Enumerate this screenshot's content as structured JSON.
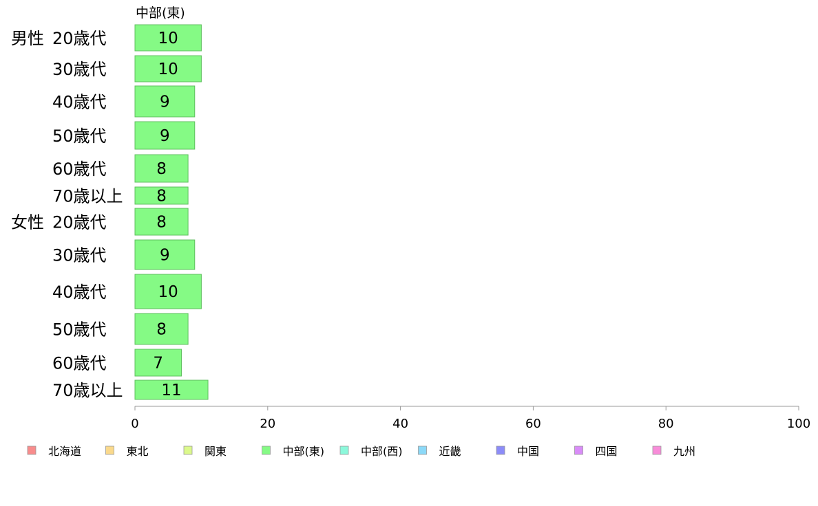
{
  "chart_data": {
    "type": "bar",
    "orientation": "horizontal",
    "series_header": "中部(東)",
    "groups": [
      {
        "label": "男性",
        "rows": [
          {
            "label": "20歳代",
            "value": 10
          },
          {
            "label": "30歳代",
            "value": 10
          },
          {
            "label": "40歳代",
            "value": 9
          },
          {
            "label": "50歳代",
            "value": 9
          },
          {
            "label": "60歳代",
            "value": 8
          },
          {
            "label": "70歳以上",
            "value": 8
          }
        ]
      },
      {
        "label": "女性",
        "rows": [
          {
            "label": "20歳代",
            "value": 8
          },
          {
            "label": "30歳代",
            "value": 9
          },
          {
            "label": "40歳代",
            "value": 10
          },
          {
            "label": "50歳代",
            "value": 8
          },
          {
            "label": "60歳代",
            "value": 7
          },
          {
            "label": "70歳以上",
            "value": 11
          }
        ]
      }
    ],
    "data_labels": [
      [
        "10",
        "10",
        "9",
        "9",
        "8",
        "8"
      ],
      [
        "8",
        "9",
        "10",
        "8",
        "7",
        "11"
      ]
    ],
    "bar_color": "#85fa85",
    "bar_stroke": "#5fbf5f",
    "xlim": [
      0,
      100
    ],
    "xticks": [
      0,
      20,
      40,
      60,
      80,
      100
    ],
    "grid": false,
    "legend_position": "bottom",
    "legend": [
      {
        "name": "北海道",
        "color": "#f88c8c"
      },
      {
        "name": "東北",
        "color": "#fad98c"
      },
      {
        "name": "関東",
        "color": "#dcf98c"
      },
      {
        "name": "中部(東)",
        "color": "#85fa85"
      },
      {
        "name": "中部(西)",
        "color": "#8cf8db"
      },
      {
        "name": "近畿",
        "color": "#8cd9f8"
      },
      {
        "name": "中国",
        "color": "#8c8cf8"
      },
      {
        "name": "四国",
        "color": "#d98cf8"
      },
      {
        "name": "九州",
        "color": "#f88cd9"
      }
    ]
  }
}
